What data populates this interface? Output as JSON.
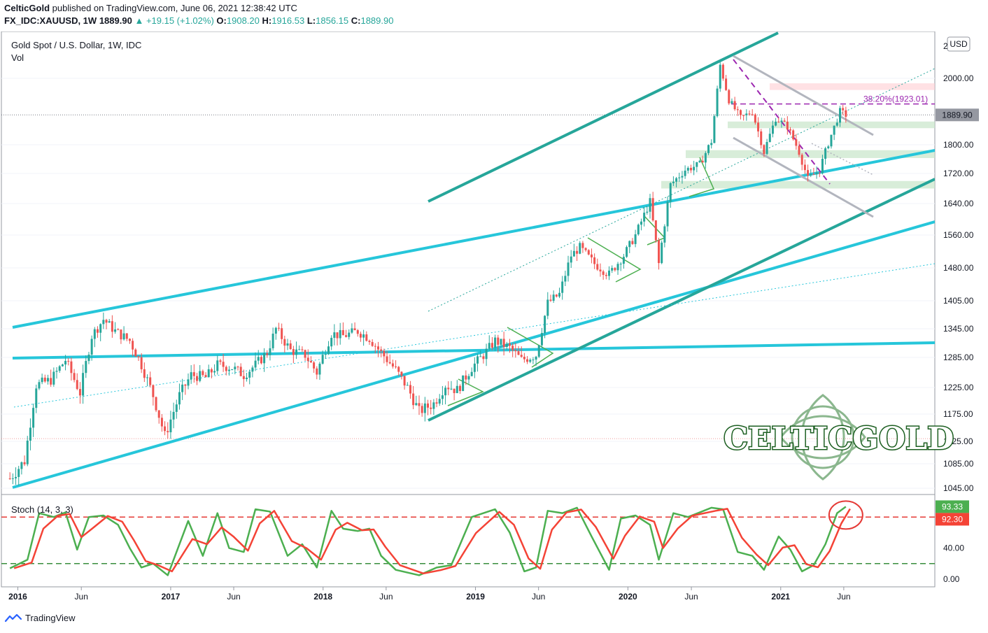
{
  "header": {
    "publisher": "CelticGold",
    "published_text": "published on TradingView.com, June 06, 2021 12:38:42 UTC",
    "symbol": "FX_IDC:XAUUSD, 1W",
    "last": "1889.90",
    "change": "+19.15 (+1.02%)",
    "open_label": "O:",
    "open": "1908.20",
    "high_label": "H:",
    "high": "1916.53",
    "low_label": "L:",
    "low": "1856.15",
    "close_label": "C:",
    "close": "1889.90"
  },
  "footer": {
    "brand": "TradingView"
  },
  "colors": {
    "up": "#26a69a",
    "down": "#ef5350",
    "channel": "#26a69a",
    "trend": "#26c6da",
    "fib": "#9c27b0",
    "zone": "#4caf50",
    "stoch_k": "#4caf50",
    "stoch_d": "#f44336"
  },
  "chart_data": [
    {
      "type": "candlestick",
      "title": "Gold Spot / U.S. Dollar, 1W, IDC",
      "subtitle": "Vol",
      "currency": "USD",
      "y_axis_ticks": [
        "2000.00",
        "1800.00",
        "1720.00",
        "1640.00",
        "1560.00",
        "1480.00",
        "1405.00",
        "1345.00",
        "1285.00",
        "1225.00",
        "1175.00",
        "1125.00",
        "1085.00",
        "1045.00"
      ],
      "y_axis_top_label": "2",
      "x_axis_ticks": [
        "2016",
        "Jun",
        "2017",
        "Jun",
        "2018",
        "Jun",
        "2019",
        "Jun",
        "2020",
        "Jun",
        "2021",
        "Jun"
      ],
      "last_price_label": "1889.90",
      "fib_label": "38.20%(1923.01)",
      "fib_level": 1923.01,
      "close_path": [
        [
          "2015-12-13",
          1061
        ],
        [
          "2016-01-17",
          1090
        ],
        [
          "2016-02-14",
          1230
        ],
        [
          "2016-03-20",
          1240
        ],
        [
          "2016-04-24",
          1280
        ],
        [
          "2016-05-29",
          1215
        ],
        [
          "2016-06-26",
          1330
        ],
        [
          "2016-07-24",
          1365
        ],
        [
          "2016-08-21",
          1340
        ],
        [
          "2016-09-25",
          1320
        ],
        [
          "2016-10-23",
          1270
        ],
        [
          "2016-11-20",
          1210
        ],
        [
          "2016-12-18",
          1135
        ],
        [
          "2017-01-22",
          1210
        ],
        [
          "2017-02-19",
          1250
        ],
        [
          "2017-03-26",
          1245
        ],
        [
          "2017-04-23",
          1270
        ],
        [
          "2017-05-28",
          1265
        ],
        [
          "2017-06-25",
          1250
        ],
        [
          "2017-07-23",
          1270
        ],
        [
          "2017-08-20",
          1295
        ],
        [
          "2017-09-10",
          1345
        ],
        [
          "2017-10-15",
          1300
        ],
        [
          "2017-11-19",
          1290
        ],
        [
          "2017-12-17",
          1255
        ],
        [
          "2018-01-21",
          1335
        ],
        [
          "2018-02-18",
          1330
        ],
        [
          "2018-03-25",
          1340
        ],
        [
          "2018-04-22",
          1325
        ],
        [
          "2018-05-20",
          1295
        ],
        [
          "2018-06-24",
          1260
        ],
        [
          "2018-07-22",
          1225
        ],
        [
          "2018-08-19",
          1180
        ],
        [
          "2018-09-23",
          1195
        ],
        [
          "2018-10-21",
          1230
        ],
        [
          "2018-11-18",
          1220
        ],
        [
          "2018-12-23",
          1265
        ],
        [
          "2019-01-20",
          1290
        ],
        [
          "2019-02-17",
          1320
        ],
        [
          "2019-03-24",
          1305
        ],
        [
          "2019-04-21",
          1280
        ],
        [
          "2019-05-26",
          1290
        ],
        [
          "2019-06-23",
          1400
        ],
        [
          "2019-07-21",
          1420
        ],
        [
          "2019-08-18",
          1510
        ],
        [
          "2019-09-08",
          1530
        ],
        [
          "2019-10-13",
          1490
        ],
        [
          "2019-11-17",
          1465
        ],
        [
          "2019-12-22",
          1510
        ],
        [
          "2020-01-19",
          1560
        ],
        [
          "2020-02-23",
          1645
        ],
        [
          "2020-03-15",
          1490
        ],
        [
          "2020-04-12",
          1690
        ],
        [
          "2020-05-17",
          1730
        ],
        [
          "2020-06-21",
          1745
        ],
        [
          "2020-07-19",
          1810
        ],
        [
          "2020-08-09",
          2040
        ],
        [
          "2020-08-30",
          1935
        ],
        [
          "2020-09-27",
          1880
        ],
        [
          "2020-10-25",
          1900
        ],
        [
          "2020-11-22",
          1780
        ],
        [
          "2020-12-20",
          1880
        ],
        [
          "2021-01-17",
          1855
        ],
        [
          "2021-02-14",
          1780
        ],
        [
          "2021-03-07",
          1705
        ],
        [
          "2021-04-04",
          1730
        ],
        [
          "2021-05-02",
          1830
        ],
        [
          "2021-05-23",
          1900
        ],
        [
          "2021-06-06",
          1889.9
        ]
      ]
    },
    {
      "type": "line",
      "title": "Stoch (14, 3, 3)",
      "y_axis_ticks": [
        "40.00",
        "0.00"
      ],
      "levels": [
        80,
        20
      ],
      "last_k_label": "93.33",
      "last_d_label": "92.30",
      "series": [
        {
          "name": "",
          "points": [
            [
              "2015-12-13",
              14
            ],
            [
              "2016-01-24",
              25
            ],
            [
              "2016-02-21",
              85
            ],
            [
              "2016-03-27",
              80
            ],
            [
              "2016-04-24",
              86
            ],
            [
              "2016-05-22",
              38
            ],
            [
              "2016-06-19",
              80
            ],
            [
              "2016-07-24",
              82
            ],
            [
              "2016-08-28",
              70
            ],
            [
              "2016-09-25",
              40
            ],
            [
              "2016-10-23",
              15
            ],
            [
              "2016-11-20",
              20
            ],
            [
              "2016-12-25",
              5
            ],
            [
              "2017-02-12",
              75
            ],
            [
              "2017-03-19",
              30
            ],
            [
              "2017-04-23",
              85
            ],
            [
              "2017-05-21",
              40
            ],
            [
              "2017-06-25",
              35
            ],
            [
              "2017-07-23",
              90
            ],
            [
              "2017-08-27",
              87
            ],
            [
              "2017-10-08",
              30
            ],
            [
              "2017-11-12",
              45
            ],
            [
              "2017-12-17",
              15
            ],
            [
              "2018-01-21",
              88
            ],
            [
              "2018-02-18",
              65
            ],
            [
              "2018-03-25",
              62
            ],
            [
              "2018-04-22",
              65
            ],
            [
              "2018-05-20",
              30
            ],
            [
              "2018-06-24",
              12
            ],
            [
              "2018-08-19",
              5
            ],
            [
              "2018-09-30",
              15
            ],
            [
              "2018-11-04",
              18
            ],
            [
              "2018-12-23",
              80
            ],
            [
              "2019-02-17",
              90
            ],
            [
              "2019-03-24",
              60
            ],
            [
              "2019-04-28",
              10
            ],
            [
              "2019-05-26",
              15
            ],
            [
              "2019-06-23",
              88
            ],
            [
              "2019-07-28",
              85
            ],
            [
              "2019-09-01",
              92
            ],
            [
              "2019-10-06",
              55
            ],
            [
              "2019-11-17",
              12
            ],
            [
              "2019-12-15",
              78
            ],
            [
              "2020-01-19",
              82
            ],
            [
              "2020-02-23",
              70
            ],
            [
              "2020-03-15",
              25
            ],
            [
              "2020-04-19",
              85
            ],
            [
              "2020-05-24",
              80
            ],
            [
              "2020-07-19",
              92
            ],
            [
              "2020-08-16",
              90
            ],
            [
              "2020-09-20",
              35
            ],
            [
              "2020-10-25",
              30
            ],
            [
              "2020-11-22",
              12
            ],
            [
              "2020-12-27",
              55
            ],
            [
              "2021-01-24",
              38
            ],
            [
              "2021-02-21",
              10
            ],
            [
              "2021-03-21",
              18
            ],
            [
              "2021-04-18",
              45
            ],
            [
              "2021-05-16",
              85
            ],
            [
              "2021-06-06",
              93.33
            ]
          ]
        }
      ]
    }
  ]
}
